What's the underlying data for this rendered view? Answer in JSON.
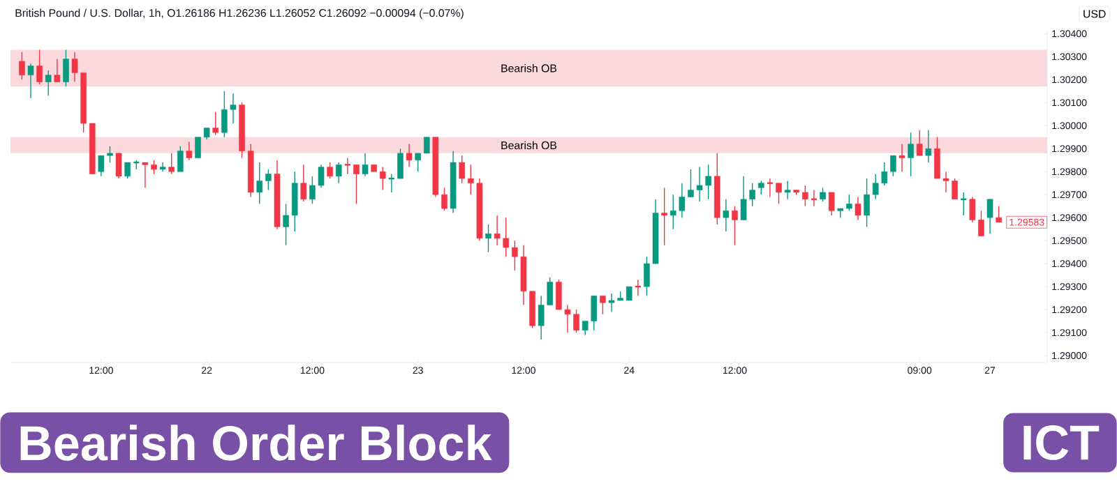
{
  "chart_data": {
    "type": "candlestick",
    "title": "British Pound / U.S. Dollar, 1h, O1.26186 H1.26236 L1.26052 C1.26092 −0.00094 (−0.07%)",
    "ylabel": "USD",
    "ylim": [
      1.2897,
      1.3041
    ],
    "yticks": [
      {
        "value": 1.29,
        "label": "1.29000"
      },
      {
        "value": 1.291,
        "label": "1.29100"
      },
      {
        "value": 1.292,
        "label": "1.29200"
      },
      {
        "value": 1.293,
        "label": "1.29300"
      },
      {
        "value": 1.294,
        "label": "1.29400"
      },
      {
        "value": 1.295,
        "label": "1.29500"
      },
      {
        "value": 1.296,
        "label": "1.29600"
      },
      {
        "value": 1.297,
        "label": "1.29700"
      },
      {
        "value": 1.298,
        "label": "1.29800"
      },
      {
        "value": 1.299,
        "label": "1.29900"
      },
      {
        "value": 1.3,
        "label": "1.30000"
      },
      {
        "value": 1.301,
        "label": "1.30100"
      },
      {
        "value": 1.302,
        "label": "1.30200"
      },
      {
        "value": 1.303,
        "label": "1.30300"
      },
      {
        "value": 1.304,
        "label": "1.30400"
      }
    ],
    "categories": [
      null,
      null,
      null,
      null,
      null,
      null,
      null,
      null,
      null,
      "12:00",
      null,
      null,
      null,
      null,
      null,
      null,
      null,
      null,
      null,
      null,
      null,
      "22",
      null,
      null,
      null,
      null,
      null,
      null,
      null,
      null,
      null,
      null,
      null,
      "12:00",
      null,
      null,
      null,
      null,
      null,
      null,
      null,
      null,
      null,
      null,
      null,
      "23",
      null,
      null,
      null,
      null,
      null,
      null,
      null,
      null,
      null,
      null,
      null,
      "12:00",
      null,
      null,
      null,
      null,
      null,
      null,
      null,
      null,
      null,
      null,
      null,
      "24",
      null,
      null,
      null,
      null,
      null,
      null,
      null,
      null,
      null,
      null,
      null,
      "12:00",
      null,
      null,
      null,
      null,
      null,
      null,
      null,
      null,
      null,
      null,
      null,
      null,
      null,
      null,
      null,
      null,
      null,
      null,
      null,
      null,
      "09:00",
      null,
      null,
      null,
      null,
      null,
      null,
      null,
      "27",
      null
    ],
    "ohlc": [
      [
        1.3028,
        1.3032,
        1.302,
        1.3022
      ],
      [
        1.3022,
        1.3027,
        1.3012,
        1.3026
      ],
      [
        1.3026,
        1.3033,
        1.3018,
        1.3019
      ],
      [
        1.3019,
        1.3024,
        1.3013,
        1.3022
      ],
      [
        1.3022,
        1.3029,
        1.3019,
        1.3019
      ],
      [
        1.3019,
        1.3033,
        1.3017,
        1.3029
      ],
      [
        1.3029,
        1.3032,
        1.3019,
        1.3023
      ],
      [
        1.3023,
        1.3023,
        1.2997,
        1.3001
      ],
      [
        1.3001,
        1.3001,
        1.2979,
        1.2979
      ],
      [
        1.298,
        1.2987,
        1.2978,
        1.2987
      ],
      [
        1.2987,
        1.2991,
        1.2984,
        1.2988
      ],
      [
        1.2988,
        1.2988,
        1.2977,
        1.2978
      ],
      [
        1.2978,
        1.2984,
        1.2977,
        1.2984
      ],
      [
        1.2984,
        1.2985,
        1.2981,
        1.2984
      ],
      [
        1.2984,
        1.2984,
        1.2973,
        1.2983
      ],
      [
        1.2983,
        1.2985,
        1.2979,
        1.2981
      ],
      [
        1.2981,
        1.2984,
        1.298,
        1.2982
      ],
      [
        1.2982,
        1.2988,
        1.2979,
        1.298
      ],
      [
        1.298,
        1.2991,
        1.298,
        1.2989
      ],
      [
        1.2989,
        1.2993,
        1.2985,
        1.2986
      ],
      [
        1.2986,
        1.2995,
        1.2986,
        1.2995
      ],
      [
        1.2995,
        1.2999,
        1.2994,
        1.2999
      ],
      [
        1.2999,
        1.3006,
        1.2996,
        1.2997
      ],
      [
        1.2997,
        1.3015,
        1.2995,
        1.3007
      ],
      [
        1.3007,
        1.3014,
        1.3001,
        1.3009
      ],
      [
        1.3009,
        1.301,
        1.2986,
        1.2989
      ],
      [
        1.2989,
        1.2992,
        1.2969,
        1.2971
      ],
      [
        1.2971,
        1.2984,
        1.2966,
        1.2976
      ],
      [
        1.2976,
        1.2981,
        1.2972,
        1.2979
      ],
      [
        1.2979,
        1.2985,
        1.2955,
        1.2956
      ],
      [
        1.2956,
        1.2966,
        1.2948,
        1.2961
      ],
      [
        1.2961,
        1.298,
        1.2954,
        1.2975
      ],
      [
        1.2975,
        1.2983,
        1.2967,
        1.2968
      ],
      [
        1.2968,
        1.2978,
        1.2966,
        1.2974
      ],
      [
        1.2974,
        1.2983,
        1.2973,
        1.2982
      ],
      [
        1.2982,
        1.2984,
        1.2977,
        1.2978
      ],
      [
        1.2978,
        1.2984,
        1.2975,
        1.2983
      ],
      [
        1.2983,
        1.2986,
        1.2979,
        1.2983
      ],
      [
        1.2983,
        1.2983,
        1.2966,
        1.2979
      ],
      [
        1.2979,
        1.2988,
        1.2978,
        1.2983
      ],
      [
        1.2983,
        1.2983,
        1.298,
        1.298
      ],
      [
        1.298,
        1.2982,
        1.2972,
        1.2977
      ],
      [
        1.2977,
        1.2979,
        1.2971,
        1.2977
      ],
      [
        1.2977,
        1.299,
        1.2977,
        1.2988
      ],
      [
        1.2988,
        1.2992,
        1.2982,
        1.2985
      ],
      [
        1.2985,
        1.2988,
        1.298,
        1.2988
      ],
      [
        1.2988,
        1.2995,
        1.2988,
        1.2995
      ],
      [
        1.2995,
        1.2995,
        1.2969,
        1.297
      ],
      [
        1.297,
        1.2973,
        1.2963,
        1.2964
      ],
      [
        1.2964,
        1.2989,
        1.2962,
        1.2984
      ],
      [
        1.2984,
        1.2987,
        1.2975,
        1.2977
      ],
      [
        1.2977,
        1.2983,
        1.297,
        1.2975
      ],
      [
        1.2975,
        1.2977,
        1.295,
        1.2951
      ],
      [
        1.2951,
        1.2957,
        1.2945,
        1.2953
      ],
      [
        1.2953,
        1.2961,
        1.2948,
        1.2951
      ],
      [
        1.2951,
        1.296,
        1.2943,
        1.2947
      ],
      [
        1.2947,
        1.295,
        1.2937,
        1.2943
      ],
      [
        1.2943,
        1.2948,
        1.2922,
        1.2928
      ],
      [
        1.2928,
        1.2928,
        1.2912,
        1.2913
      ],
      [
        1.2913,
        1.2926,
        1.2907,
        1.2922
      ],
      [
        1.2922,
        1.2934,
        1.2922,
        1.2932
      ],
      [
        1.2932,
        1.2933,
        1.292,
        1.292
      ],
      [
        1.292,
        1.2922,
        1.291,
        1.2918
      ],
      [
        1.2918,
        1.292,
        1.291,
        1.2911
      ],
      [
        1.2911,
        1.2915,
        1.2909,
        1.2915
      ],
      [
        1.2915,
        1.2926,
        1.2911,
        1.2926
      ],
      [
        1.2926,
        1.2926,
        1.2918,
        1.2923
      ],
      [
        1.2923,
        1.2927,
        1.2919,
        1.2924
      ],
      [
        1.2924,
        1.2928,
        1.2924,
        1.2925
      ],
      [
        1.2924,
        1.293,
        1.2924,
        1.293
      ],
      [
        1.293,
        1.2933,
        1.2926,
        1.293
      ],
      [
        1.293,
        1.2943,
        1.2926,
        1.294
      ],
      [
        1.294,
        1.2968,
        1.294,
        1.2962
      ],
      [
        1.2962,
        1.2973,
        1.2948,
        1.2961
      ],
      [
        1.2961,
        1.297,
        1.2955,
        1.2963
      ],
      [
        1.2963,
        1.2975,
        1.296,
        1.2969
      ],
      [
        1.2969,
        1.2981,
        1.2969,
        1.2972
      ],
      [
        1.2972,
        1.2982,
        1.2967,
        1.2974
      ],
      [
        1.2974,
        1.2983,
        1.2968,
        1.2978
      ],
      [
        1.2978,
        1.2988,
        1.2957,
        1.296
      ],
      [
        1.296,
        1.2968,
        1.2954,
        1.2963
      ],
      [
        1.2963,
        1.2965,
        1.2948,
        1.2959
      ],
      [
        1.2959,
        1.2978,
        1.2959,
        1.2968
      ],
      [
        1.2968,
        1.2975,
        1.2965,
        1.2972
      ],
      [
        1.2973,
        1.2976,
        1.297,
        1.2975
      ],
      [
        1.2975,
        1.2977,
        1.2969,
        1.2975
      ],
      [
        1.2975,
        1.2975,
        1.2966,
        1.2971
      ],
      [
        1.2971,
        1.2976,
        1.2968,
        1.2972
      ],
      [
        1.2972,
        1.2972,
        1.297,
        1.2971
      ],
      [
        1.2971,
        1.2974,
        1.2965,
        1.2968
      ],
      [
        1.2968,
        1.2972,
        1.2965,
        1.2968
      ],
      [
        1.2968,
        1.2973,
        1.2967,
        1.2971
      ],
      [
        1.2971,
        1.2971,
        1.2961,
        1.2963
      ],
      [
        1.2963,
        1.2964,
        1.296,
        1.2964
      ],
      [
        1.2964,
        1.297,
        1.2963,
        1.2966
      ],
      [
        1.2966,
        1.2969,
        1.2959,
        1.2961
      ],
      [
        1.2961,
        1.2977,
        1.2956,
        1.297
      ],
      [
        1.297,
        1.2979,
        1.2968,
        1.2975
      ],
      [
        1.2975,
        1.2984,
        1.2974,
        1.298
      ],
      [
        1.298,
        1.2987,
        1.2978,
        1.2987
      ],
      [
        1.2987,
        1.2992,
        1.298,
        1.2986
      ],
      [
        1.2986,
        1.2997,
        1.2978,
        1.2992
      ],
      [
        1.2992,
        1.2998,
        1.2987,
        1.2987
      ],
      [
        1.2987,
        1.2998,
        1.2984,
        1.299
      ],
      [
        1.299,
        1.2995,
        1.2977,
        1.2977
      ],
      [
        1.2977,
        1.298,
        1.2971,
        1.2976
      ],
      [
        1.2976,
        1.2977,
        1.2968,
        1.2968
      ],
      [
        1.2968,
        1.2971,
        1.2961,
        1.2968
      ],
      [
        1.2968,
        1.2969,
        1.2958,
        1.2959
      ],
      [
        1.2959,
        1.2963,
        1.2952,
        1.2952
      ],
      [
        1.296,
        1.2968,
        1.2953,
        1.2968
      ],
      [
        1.296,
        1.2965,
        1.2958,
        1.2958
      ]
    ],
    "colors": [
      "#f23645",
      "#089981",
      "#f23645",
      "#089981",
      "#f23645",
      "#089981",
      "#f23645",
      "#f23645",
      "#f23645",
      "#089981",
      "#089981",
      "#f23645",
      "#089981",
      "#089981",
      "#f23645",
      "#f23645",
      "#089981",
      "#f23645",
      "#089981",
      "#f23645",
      "#089981",
      "#089981",
      "#f23645",
      "#089981",
      "#089981",
      "#f23645",
      "#f23645",
      "#089981",
      "#089981",
      "#f23645",
      "#089981",
      "#089981",
      "#f23645",
      "#089981",
      "#089981",
      "#f23645",
      "#089981",
      "#f23645",
      "#f23645",
      "#089981",
      "#f23645",
      "#f23645",
      "#089981",
      "#089981",
      "#f23645",
      "#089981",
      "#089981",
      "#f23645",
      "#f23645",
      "#089981",
      "#f23645",
      "#f23645",
      "#f23645",
      "#089981",
      "#f23645",
      "#f23645",
      "#f23645",
      "#f23645",
      "#f23645",
      "#089981",
      "#089981",
      "#f23645",
      "#f23645",
      "#f23645",
      "#089981",
      "#089981",
      "#f23645",
      "#089981",
      "#089981",
      "#089981",
      "#f23645",
      "#089981",
      "#089981",
      "#f23645",
      "#089981",
      "#089981",
      "#089981",
      "#089981",
      "#089981",
      "#f23645",
      "#089981",
      "#f23645",
      "#089981",
      "#089981",
      "#089981",
      "#f23645",
      "#f23645",
      "#089981",
      "#f23645",
      "#f23645",
      "#f23645",
      "#089981",
      "#f23645",
      "#089981",
      "#089981",
      "#f23645",
      "#089981",
      "#089981",
      "#089981",
      "#089981",
      "#f23645",
      "#089981",
      "#f23645",
      "#089981",
      "#f23645",
      "#f23645",
      "#f23645",
      "#089981",
      "#f23645",
      "#f23645",
      "#089981",
      "#f23645"
    ],
    "bands": [
      {
        "axis": "y",
        "from": 1.3017,
        "to": 1.3033,
        "label": "Bearish OB",
        "color": "#fbd9dd"
      },
      {
        "axis": "y",
        "from": 1.2988,
        "to": 1.2995,
        "label": "Bearish OB",
        "color": "#fbd9dd"
      }
    ],
    "annotations": [
      "Bearish Order Block",
      "ICT",
      "1.29583"
    ]
  }
}
